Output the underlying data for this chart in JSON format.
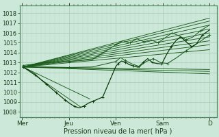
{
  "bg_color": "#cce8d8",
  "grid_color_major": "#a8c8b8",
  "grid_color_minor": "#b8d8c8",
  "line_color": "#1a5c1a",
  "dark_line_color": "#0a3a0a",
  "ylim": [
    1007.5,
    1018.8
  ],
  "yticks": [
    1008,
    1009,
    1010,
    1011,
    1012,
    1013,
    1014,
    1015,
    1016,
    1017,
    1018
  ],
  "xtick_positions": [
    0,
    1,
    2,
    3,
    4
  ],
  "xtick_labels": [
    "Mer",
    "Jeu",
    "Ven",
    "Sam",
    "D"
  ],
  "xlabel": "Pression niveau de la mer( hPa )",
  "x_origin": 0.0,
  "x_end": 4.0,
  "convergence_x": 0.02,
  "convergence_y": 1012.55,
  "upper_fan_endpoints": [
    1017.5,
    1017.2,
    1016.8,
    1016.4,
    1016.0,
    1015.6,
    1015.2,
    1014.8,
    1014.3
  ],
  "lower_fan_endpoints": [
    1012.3,
    1012.1,
    1011.85
  ],
  "lower_fan_x_end": 4.0,
  "main_line_x": [
    0.02,
    0.15,
    0.28,
    0.42,
    0.52,
    0.62,
    0.72,
    0.82,
    0.92,
    1.02,
    1.12,
    1.22,
    1.32,
    1.42,
    1.52,
    1.62,
    1.72,
    2.0,
    2.05,
    2.12,
    2.2,
    2.28,
    2.38,
    2.48,
    2.58,
    2.68,
    2.78,
    2.88,
    2.98,
    3.08,
    3.18,
    3.28,
    3.38,
    3.5,
    3.62,
    3.72,
    3.85,
    4.0
  ],
  "main_line_y": [
    1012.55,
    1012.2,
    1011.8,
    1011.2,
    1010.8,
    1010.4,
    1010.0,
    1009.6,
    1009.2,
    1008.85,
    1008.55,
    1008.4,
    1008.6,
    1008.9,
    1009.1,
    1009.3,
    1009.5,
    1012.6,
    1012.9,
    1013.15,
    1013.05,
    1012.8,
    1012.65,
    1012.52,
    1013.0,
    1013.4,
    1013.0,
    1012.9,
    1012.85,
    1013.8,
    1014.6,
    1015.2,
    1015.6,
    1015.1,
    1014.6,
    1014.9,
    1015.8,
    1016.3
  ],
  "upper_wavy_x": [
    0.02,
    0.5,
    1.0,
    1.5,
    2.0,
    2.15,
    2.3,
    2.45,
    2.6,
    2.75,
    2.9,
    3.05,
    3.2,
    3.35,
    3.5,
    3.65,
    3.8,
    4.0
  ],
  "upper_wavy_y": [
    1012.7,
    1013.0,
    1013.1,
    1013.3,
    1014.8,
    1015.2,
    1015.0,
    1015.4,
    1015.1,
    1015.3,
    1015.0,
    1015.5,
    1016.0,
    1015.7,
    1015.3,
    1015.6,
    1016.2,
    1016.8
  ],
  "mid_wavy_x": [
    0.02,
    0.5,
    1.0,
    1.5,
    2.0,
    2.1,
    2.2,
    2.35,
    2.5,
    2.65,
    2.8,
    2.95,
    3.1,
    3.3,
    3.5,
    3.7,
    4.0
  ],
  "mid_wavy_y": [
    1012.6,
    1012.55,
    1012.5,
    1012.55,
    1013.1,
    1013.5,
    1013.2,
    1012.85,
    1012.6,
    1013.1,
    1013.4,
    1013.0,
    1012.9,
    1013.5,
    1014.2,
    1014.8,
    1015.8
  ]
}
